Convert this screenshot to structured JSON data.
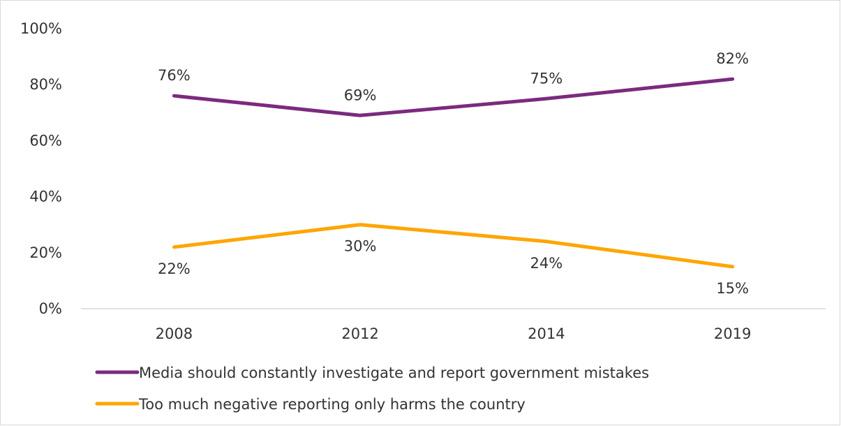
{
  "chart_data": {
    "type": "line",
    "categories": [
      "2008",
      "2012",
      "2014",
      "2019"
    ],
    "series": [
      {
        "name": "Media should constantly investigate and report government mistakes",
        "values": [
          76,
          69,
          75,
          82
        ],
        "labels": [
          "76%",
          "69%",
          "75%",
          "82%"
        ],
        "color": "#7b2a7e"
      },
      {
        "name": "Too much negative reporting only harms the country",
        "values": [
          22,
          30,
          24,
          15
        ],
        "labels": [
          "22%",
          "30%",
          "24%",
          "15%"
        ],
        "color": "#ffa500"
      }
    ],
    "y_ticks": [
      "0%",
      "20%",
      "40%",
      "60%",
      "80%",
      "100%"
    ],
    "ylim": [
      0,
      100
    ],
    "grid": false,
    "legend_position": "bottom-left"
  }
}
